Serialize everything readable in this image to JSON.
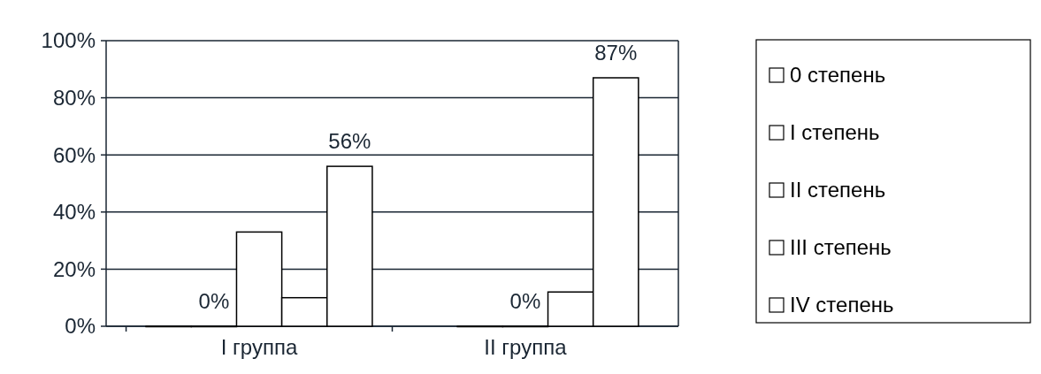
{
  "chart_data": {
    "type": "bar",
    "categories": [
      "I группа",
      "II группа"
    ],
    "series": [
      {
        "name": "0 степень",
        "color": "#ffffff",
        "values": [
          0,
          null
        ],
        "value_labels": [
          null,
          null
        ]
      },
      {
        "name": "I степень",
        "color": "#ffffff",
        "values": [
          0,
          0
        ],
        "value_labels": [
          "0%",
          null
        ]
      },
      {
        "name": "II степень",
        "color": "#ffffff",
        "values": [
          33,
          0
        ],
        "value_labels": [
          null,
          "0%"
        ]
      },
      {
        "name": "III степень",
        "color": "#ffffff",
        "values": [
          10,
          12
        ],
        "value_labels": [
          null,
          null
        ]
      },
      {
        "name": "IV степень",
        "color": "#ffffff",
        "values": [
          56,
          87
        ],
        "value_labels": [
          "56%",
          "87%"
        ]
      }
    ],
    "ylim": [
      0,
      100
    ],
    "yticks": [
      {
        "value": 0,
        "label": "0%"
      },
      {
        "value": 20,
        "label": "20%"
      },
      {
        "value": 40,
        "label": "40%"
      },
      {
        "value": 60,
        "label": "60%"
      },
      {
        "value": 80,
        "label": "80%"
      },
      {
        "value": 100,
        "label": "100%"
      }
    ],
    "grid": "y",
    "legend": "right"
  }
}
